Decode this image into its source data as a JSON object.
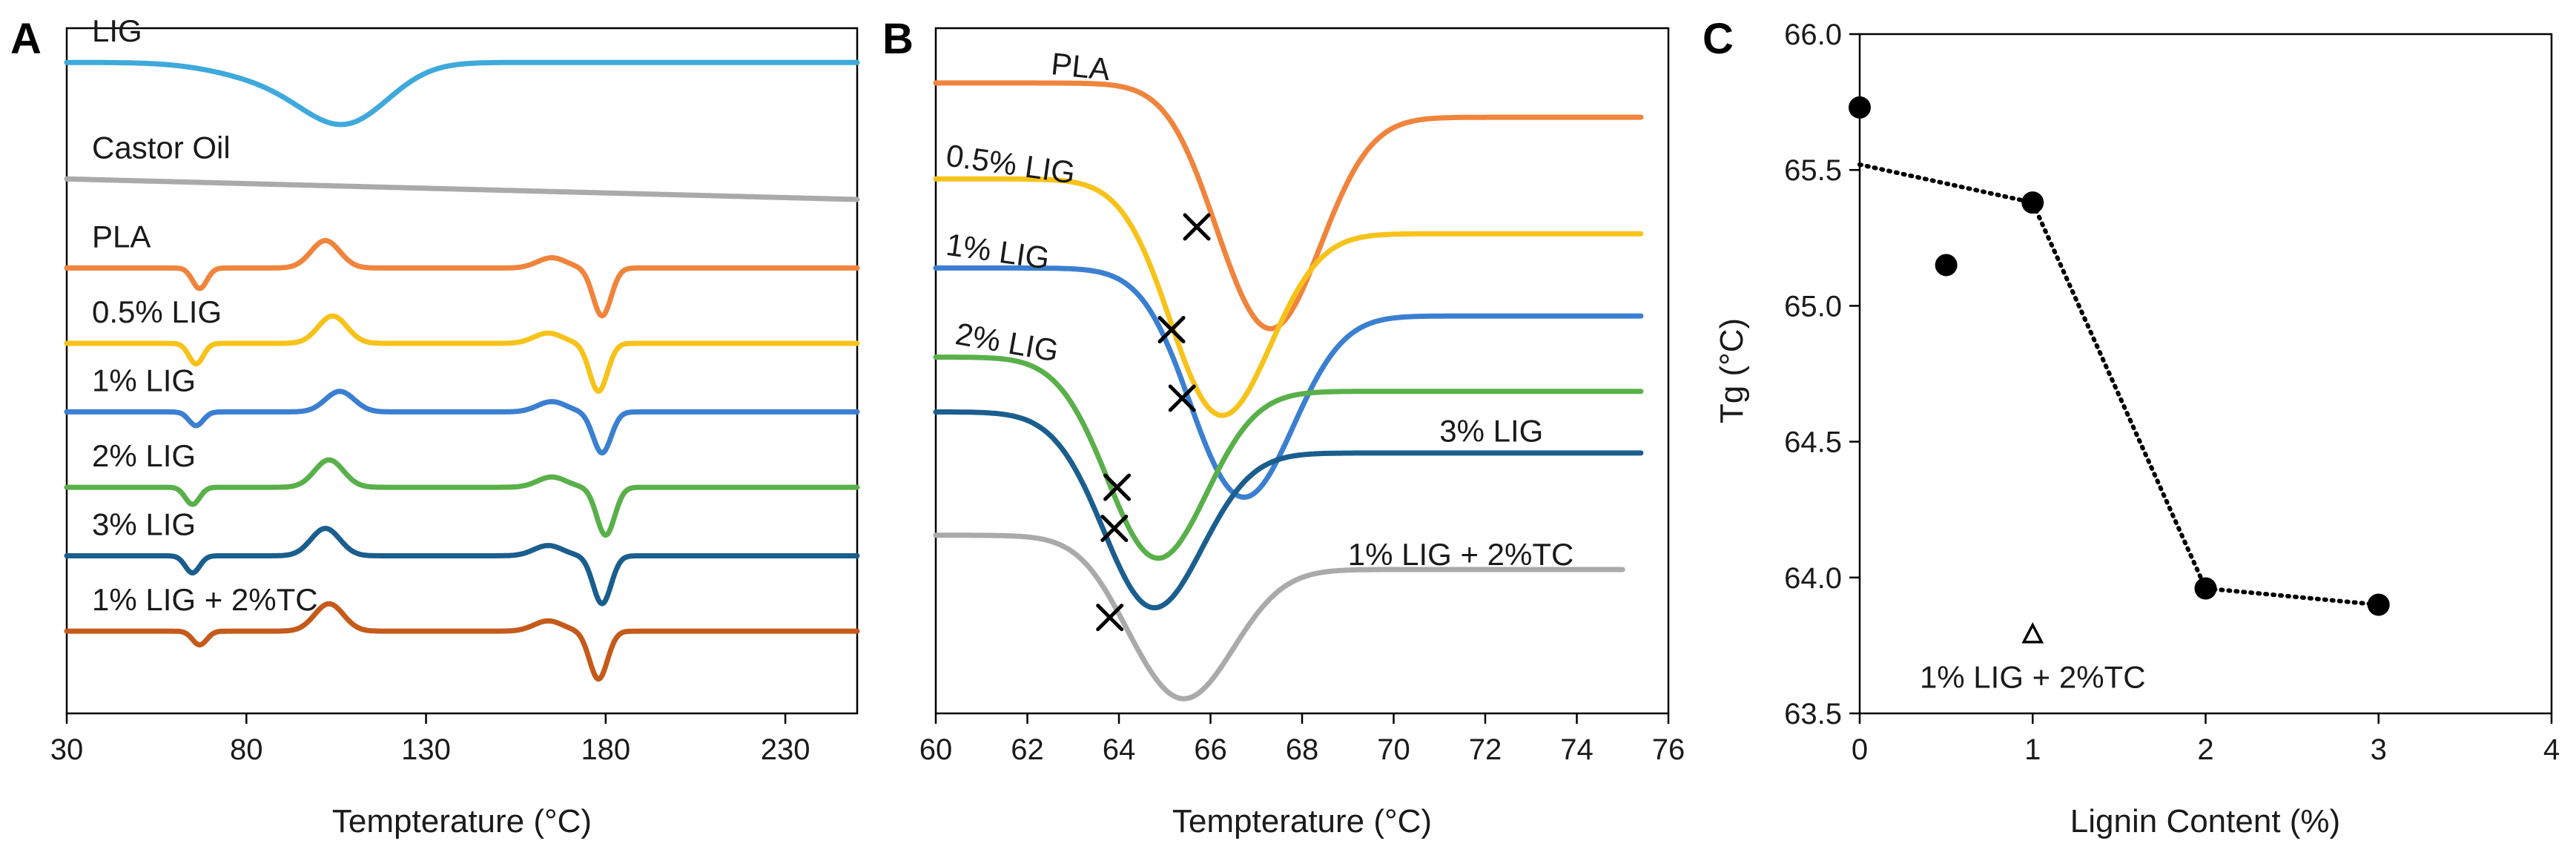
{
  "chart_data": [
    {
      "panel": "A",
      "type": "line",
      "xlabel": "Tempterature (°C)",
      "ylabel": "",
      "xlim": [
        30,
        250
      ],
      "xticks": [
        30,
        80,
        130,
        180,
        230
      ],
      "series": [
        {
          "name": "LIG",
          "color": "#3fa9dc",
          "baseline": 0.95,
          "features": [
            {
              "x": 108,
              "depth": 0.08,
              "width": 12,
              "type": "dip"
            }
          ]
        },
        {
          "name": "Castor Oil",
          "color": "#aaaaaa",
          "baseline": 0.78,
          "drift": -0.03,
          "features": []
        },
        {
          "name": "PLA",
          "color": "#f0843c",
          "baseline": 0.65,
          "features": [
            {
              "x": 67,
              "depth": 0.03,
              "width": 2,
              "type": "dip"
            },
            {
              "x": 102,
              "depth": -0.04,
              "width": 4,
              "type": "peak"
            },
            {
              "x": 165,
              "depth": -0.015,
              "width": 4,
              "type": "peak"
            },
            {
              "x": 179,
              "depth": 0.07,
              "width": 2.5,
              "type": "dip"
            }
          ]
        },
        {
          "name": "0.5% LIG",
          "color": "#f7c31b",
          "baseline": 0.54,
          "features": [
            {
              "x": 66,
              "depth": 0.03,
              "width": 2,
              "type": "dip"
            },
            {
              "x": 104,
              "depth": -0.04,
              "width": 4,
              "type": "peak"
            },
            {
              "x": 164,
              "depth": -0.015,
              "width": 4,
              "type": "peak"
            },
            {
              "x": 178,
              "depth": 0.07,
              "width": 2.5,
              "type": "dip"
            }
          ]
        },
        {
          "name": "1% LIG",
          "color": "#3b7fd1",
          "baseline": 0.44,
          "features": [
            {
              "x": 66,
              "depth": 0.02,
              "width": 2,
              "type": "dip"
            },
            {
              "x": 106,
              "depth": -0.03,
              "width": 4,
              "type": "peak"
            },
            {
              "x": 165,
              "depth": -0.015,
              "width": 4,
              "type": "peak"
            },
            {
              "x": 179,
              "depth": 0.06,
              "width": 2.5,
              "type": "dip"
            }
          ]
        },
        {
          "name": "2% LIG",
          "color": "#59b04a",
          "baseline": 0.33,
          "features": [
            {
              "x": 65,
              "depth": 0.025,
              "width": 2,
              "type": "dip"
            },
            {
              "x": 103,
              "depth": -0.04,
              "width": 4,
              "type": "peak"
            },
            {
              "x": 165,
              "depth": -0.015,
              "width": 4,
              "type": "peak"
            },
            {
              "x": 180,
              "depth": 0.07,
              "width": 2.5,
              "type": "dip"
            }
          ]
        },
        {
          "name": "3% LIG",
          "color": "#1a5e8e",
          "baseline": 0.23,
          "features": [
            {
              "x": 65,
              "depth": 0.025,
              "width": 2,
              "type": "dip"
            },
            {
              "x": 102,
              "depth": -0.04,
              "width": 4,
              "type": "peak"
            },
            {
              "x": 164,
              "depth": -0.015,
              "width": 4,
              "type": "peak"
            },
            {
              "x": 179,
              "depth": 0.07,
              "width": 2.5,
              "type": "dip"
            }
          ]
        },
        {
          "name": "1% LIG + 2%TC",
          "color": "#c55a1b",
          "baseline": 0.12,
          "features": [
            {
              "x": 67,
              "depth": 0.02,
              "width": 2,
              "type": "dip"
            },
            {
              "x": 103,
              "depth": -0.04,
              "width": 4,
              "type": "peak"
            },
            {
              "x": 164,
              "depth": -0.015,
              "width": 4,
              "type": "peak"
            },
            {
              "x": 178,
              "depth": 0.07,
              "width": 2.5,
              "type": "dip"
            }
          ]
        }
      ]
    },
    {
      "panel": "B",
      "type": "line",
      "xlabel": "Tempterature (°C)",
      "ylabel": "",
      "xlim": [
        60,
        76
      ],
      "xticks": [
        60,
        62,
        64,
        66,
        68,
        70,
        72,
        74,
        76
      ],
      "series": [
        {
          "name": "PLA",
          "color": "#f0843c",
          "start": 0.92,
          "end": 0.87,
          "min_x": 67.3,
          "min_y": 0.58,
          "tg": 65.7,
          "tg_y": 0.71
        },
        {
          "name": "0.5% LIG",
          "color": "#f7c31b",
          "start": 0.78,
          "end": 0.7,
          "min_x": 66.2,
          "min_y": 0.46,
          "tg": 65.15,
          "tg_y": 0.56
        },
        {
          "name": "1% LIG",
          "color": "#3b7fd1",
          "start": 0.65,
          "end": 0.58,
          "min_x": 66.7,
          "min_y": 0.34,
          "tg": 65.38,
          "tg_y": 0.46
        },
        {
          "name": "2% LIG",
          "color": "#59b04a",
          "start": 0.52,
          "end": 0.47,
          "min_x": 64.8,
          "min_y": 0.24,
          "tg": 63.96,
          "tg_y": 0.33
        },
        {
          "name": "3% LIG",
          "color": "#1a5e8e",
          "start": 0.44,
          "end": 0.38,
          "min_x": 64.7,
          "min_y": 0.17,
          "tg": 63.9,
          "tg_y": 0.27
        },
        {
          "name": "1% LIG + 2%TC",
          "color": "#aaaaaa",
          "start": 0.26,
          "end": 0.21,
          "min_x": 65.4,
          "min_y": 0.04,
          "tg": 63.8,
          "tg_y": 0.14
        }
      ]
    },
    {
      "panel": "C",
      "type": "scatter",
      "xlabel": "Lignin Content (%)",
      "ylabel": "Tg (°C)",
      "xlim": [
        0,
        4
      ],
      "ylim": [
        63.5,
        66.0
      ],
      "xticks": [
        0,
        1,
        2,
        3,
        4
      ],
      "yticks": [
        "63.5",
        "64.0",
        "64.5",
        "65.0",
        "65.5",
        "66.0"
      ],
      "points": [
        {
          "x": 0,
          "y": 65.73
        },
        {
          "x": 0.5,
          "y": 65.15
        },
        {
          "x": 1,
          "y": 65.38
        },
        {
          "x": 2,
          "y": 63.96
        },
        {
          "x": 3,
          "y": 63.9
        }
      ],
      "trend": [
        {
          "x": 0,
          "y": 65.52
        },
        {
          "x": 1,
          "y": 65.38
        },
        {
          "x": 2,
          "y": 63.96
        },
        {
          "x": 3,
          "y": 63.9
        }
      ],
      "special_point": {
        "x": 1,
        "y": 63.79,
        "label": "1% LIG + 2%TC"
      }
    }
  ]
}
